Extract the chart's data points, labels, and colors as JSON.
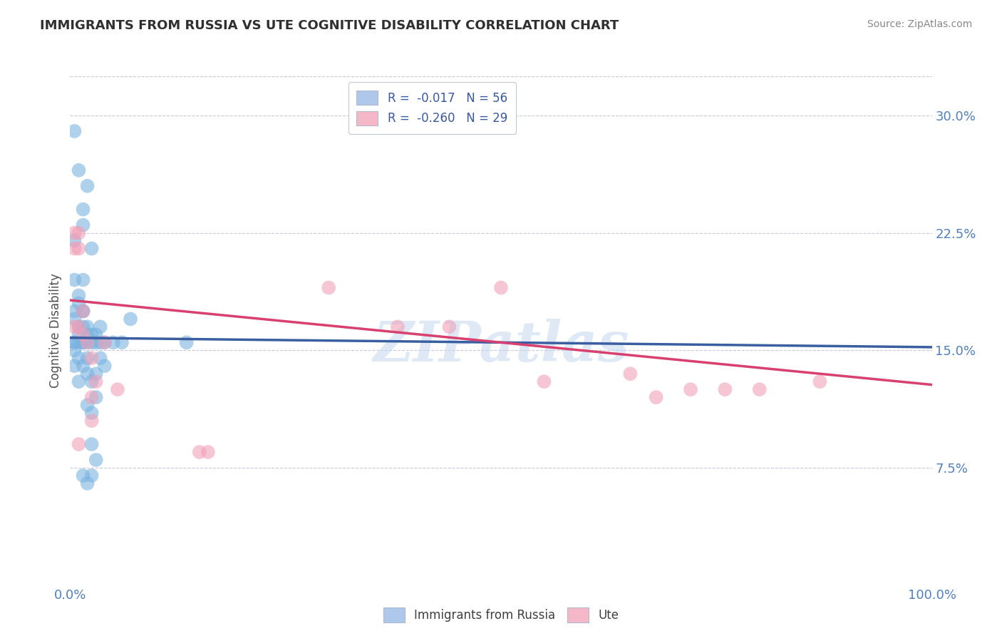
{
  "title": "IMMIGRANTS FROM RUSSIA VS UTE COGNITIVE DISABILITY CORRELATION CHART",
  "source": "Source: ZipAtlas.com",
  "ylabel": "Cognitive Disability",
  "xlim": [
    0,
    1.0
  ],
  "ylim": [
    0,
    0.325
  ],
  "yticks": [
    0.075,
    0.15,
    0.225,
    0.3
  ],
  "ytick_labels": [
    "7.5%",
    "15.0%",
    "22.5%",
    "30.0%"
  ],
  "xticks": [
    0.0,
    1.0
  ],
  "xtick_labels": [
    "0.0%",
    "100.0%"
  ],
  "legend1_label": "R =  -0.017   N = 56",
  "legend2_label": "R =  -0.260   N = 29",
  "legend_color1": "#adc8ea",
  "legend_color2": "#f5b8c8",
  "watermark": "ZIPatlas",
  "blue_scatter_x": [
    0.005,
    0.01,
    0.015,
    0.02,
    0.025,
    0.005,
    0.015,
    0.005,
    0.01,
    0.015,
    0.005,
    0.01,
    0.015,
    0.005,
    0.01,
    0.015,
    0.02,
    0.025,
    0.03,
    0.035,
    0.005,
    0.01,
    0.015,
    0.02,
    0.005,
    0.01,
    0.015,
    0.02,
    0.025,
    0.03,
    0.035,
    0.04,
    0.05,
    0.06,
    0.07,
    0.005,
    0.01,
    0.015,
    0.02,
    0.005,
    0.01,
    0.015,
    0.02,
    0.025,
    0.03,
    0.035,
    0.04,
    0.135,
    0.02,
    0.025,
    0.03,
    0.025,
    0.03,
    0.025,
    0.02,
    0.015
  ],
  "blue_scatter_y": [
    0.29,
    0.265,
    0.24,
    0.255,
    0.215,
    0.22,
    0.195,
    0.195,
    0.185,
    0.23,
    0.175,
    0.18,
    0.175,
    0.17,
    0.165,
    0.175,
    0.165,
    0.16,
    0.16,
    0.165,
    0.155,
    0.16,
    0.165,
    0.16,
    0.155,
    0.155,
    0.155,
    0.155,
    0.155,
    0.155,
    0.155,
    0.155,
    0.155,
    0.155,
    0.17,
    0.15,
    0.145,
    0.155,
    0.145,
    0.14,
    0.13,
    0.14,
    0.135,
    0.13,
    0.135,
    0.145,
    0.14,
    0.155,
    0.115,
    0.11,
    0.12,
    0.09,
    0.08,
    0.07,
    0.065,
    0.07
  ],
  "pink_scatter_x": [
    0.005,
    0.005,
    0.01,
    0.01,
    0.015,
    0.005,
    0.01,
    0.015,
    0.02,
    0.025,
    0.03,
    0.04,
    0.055,
    0.025,
    0.3,
    0.38,
    0.44,
    0.5,
    0.55,
    0.65,
    0.68,
    0.72,
    0.76,
    0.8,
    0.87,
    0.025,
    0.01,
    0.15,
    0.16
  ],
  "pink_scatter_y": [
    0.225,
    0.215,
    0.215,
    0.225,
    0.175,
    0.165,
    0.165,
    0.16,
    0.155,
    0.145,
    0.13,
    0.155,
    0.125,
    0.105,
    0.19,
    0.165,
    0.165,
    0.19,
    0.13,
    0.135,
    0.12,
    0.125,
    0.125,
    0.125,
    0.13,
    0.12,
    0.09,
    0.085,
    0.085
  ],
  "blue_line_x": [
    0.0,
    1.0
  ],
  "blue_line_y": [
    0.158,
    0.152
  ],
  "blue_dash_line_x": [
    0.0,
    1.0
  ],
  "blue_dash_line_y": [
    0.158,
    0.152
  ],
  "pink_line_x": [
    0.0,
    1.0
  ],
  "pink_line_y": [
    0.182,
    0.128
  ],
  "dot_color_blue": "#7ab3e0",
  "dot_color_pink": "#f0a0b8",
  "line_color_blue": "#3a5fa0",
  "line_color_pink": "#d84070",
  "bg_color": "#ffffff",
  "grid_color": "#c8c8d8",
  "title_color": "#303030",
  "tick_color": "#5080c0"
}
